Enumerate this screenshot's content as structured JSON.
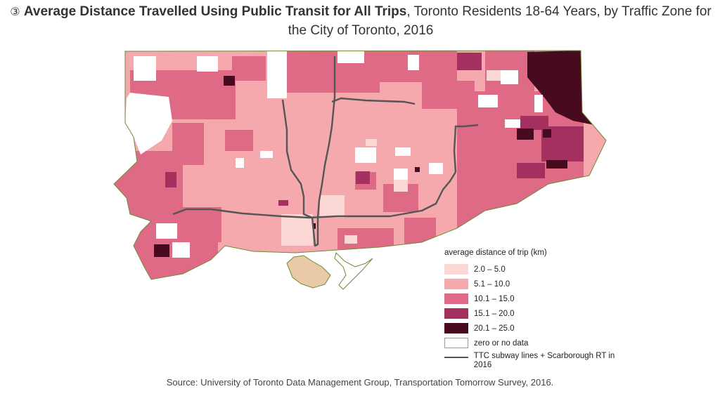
{
  "title": {
    "number": "③",
    "bold": "Average Distance Travelled Using Public Transit for All Trips",
    "rest": ", Toronto Residents 18-64 Years, by Traffic Zone for the City of Toronto, 2016"
  },
  "colors": {
    "class_1": "#fbd7d5",
    "class_2": "#f6a9ad",
    "class_3": "#de6a86",
    "class_4": "#a3305e",
    "class_5": "#470a1f",
    "no_data": "#ffffff",
    "subway": "#555555",
    "boundary": "#6e8a3a"
  },
  "legend": {
    "heading": "average distance of trip (km)",
    "items": [
      {
        "label": "2.0 – 5.0",
        "color": "#fbd7d5"
      },
      {
        "label": "5.1 – 10.0",
        "color": "#f6a9ad"
      },
      {
        "label": "10.1 – 15.0",
        "color": "#de6a86"
      },
      {
        "label": "15.1 – 20.0",
        "color": "#a3305e"
      },
      {
        "label": "20.1 – 25.0",
        "color": "#470a1f"
      },
      {
        "label": "zero or no data",
        "color": "#ffffff"
      }
    ],
    "subway_label": "TTC subway lines + Scarborough RT in 2016"
  },
  "source": "Source: University of Toronto Data Management Group, Transportation Tomorrow Survey, 2016."
}
